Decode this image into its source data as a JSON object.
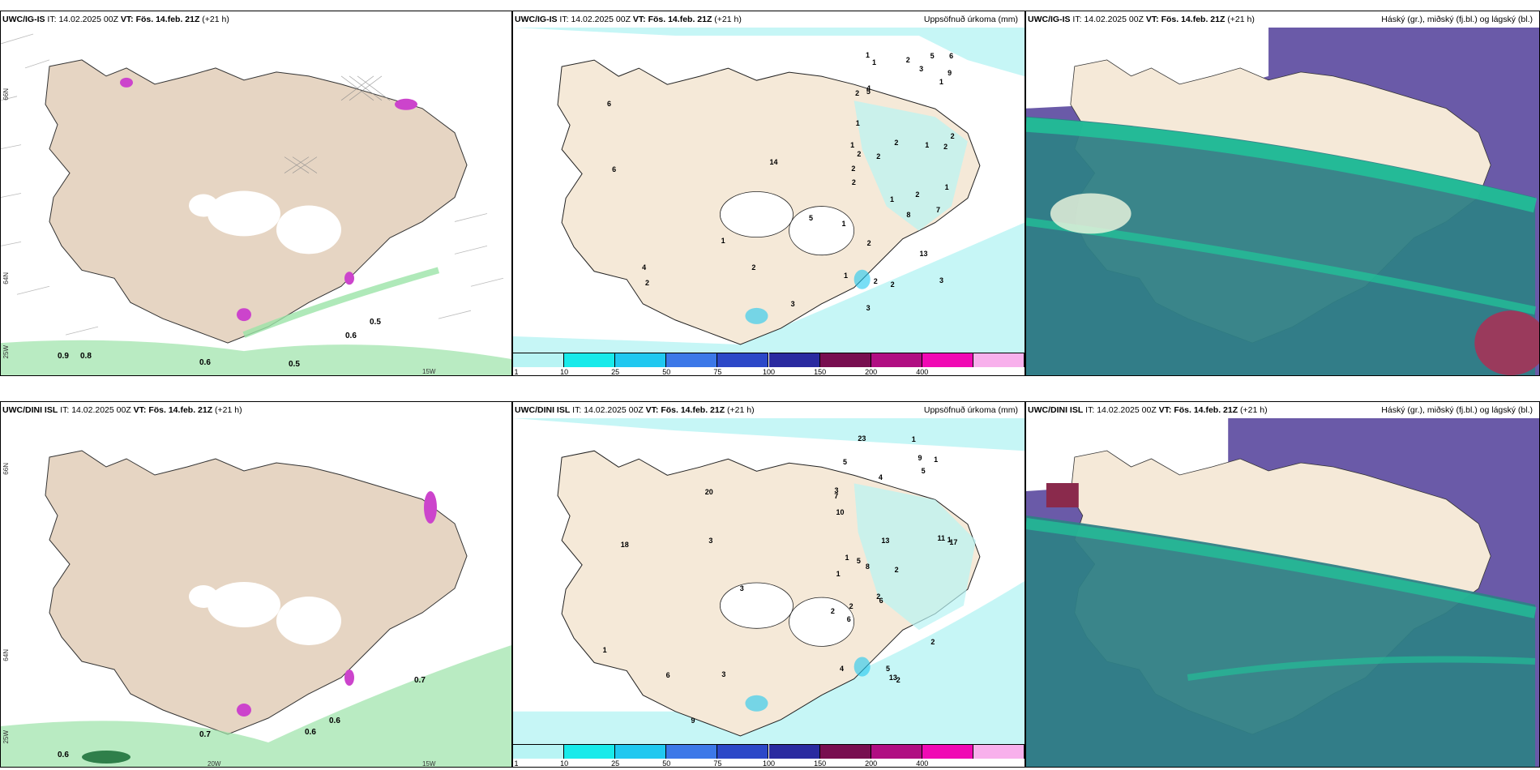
{
  "panels": [
    {
      "model": "UWC/IG-IS",
      "it_label": "IT:",
      "it": "14.02.2025 00Z",
      "vt_label": "VT:",
      "vt": "Fös. 14.feb. 21Z",
      "lead": "(+21 h)",
      "right": ""
    },
    {
      "model": "UWC/IG-IS",
      "it_label": "IT:",
      "it": "14.02.2025 00Z",
      "vt_label": "VT:",
      "vt": "Fös. 14.feb. 21Z",
      "lead": "(+21 h)",
      "right": "Uppsöfnuð úrkoma (mm)"
    },
    {
      "model": "UWC/IG-IS",
      "it_label": "IT:",
      "it": "14.02.2025 00Z",
      "vt_label": "VT:",
      "vt": "Fös. 14.feb. 21Z",
      "lead": "(+21 h)",
      "right": "Háský (gr.), miðský (fj.bl.) og lágský (bl.)"
    },
    {
      "model": "UWC/DINI ISL",
      "it_label": "IT:",
      "it": "14.02.2025 00Z",
      "vt_label": "VT:",
      "vt": "Fös. 14.feb. 21Z",
      "lead": "(+21 h)",
      "right": ""
    },
    {
      "model": "UWC/DINI ISL",
      "it_label": "IT:",
      "it": "14.02.2025 00Z",
      "vt_label": "VT:",
      "vt": "Fös. 14.feb. 21Z",
      "lead": "(+21 h)",
      "right": "Uppsöfnuð úrkoma (mm)"
    },
    {
      "model": "UWC/DINI ISL",
      "it_label": "IT:",
      "it": "14.02.2025 00Z",
      "vt_label": "VT:",
      "vt": "Fös. 14.feb. 21Z",
      "lead": "(+21 h)",
      "right": "Háský (gr.), miðský (fj.bl.) og lágský (bl.)"
    }
  ],
  "axis_labels": {
    "lat66": "66N",
    "lat64": "64N",
    "lon25": "25W",
    "lon20": "20W",
    "lon15": "15W"
  },
  "colorbar": {
    "ticks": [
      "1",
      "10",
      "25",
      "50",
      "75",
      "100",
      "150",
      "200",
      "400"
    ],
    "colors": [
      "#b8f4f4",
      "#18eaea",
      "#20c8f0",
      "#3c78e8",
      "#2c48c8",
      "#2a2aa0",
      "#780e50",
      "#b00e82",
      "#f00ab4",
      "#f8b0ec"
    ]
  },
  "wind_labels_top": [
    "0.9",
    "0.8",
    "0.6",
    "0.5",
    "0.6",
    "0.5"
  ],
  "wind_labels_bottom": [
    "0.6",
    "0.7",
    "0.6",
    "0.6",
    "0.7"
  ],
  "precip_labels_top": [
    "2",
    "1",
    "1",
    "1",
    "2",
    "1",
    "1",
    "2",
    "2",
    "2",
    "1",
    "2",
    "3",
    "2",
    "1",
    "2",
    "6",
    "3",
    "2",
    "2",
    "4",
    "8",
    "3",
    "2",
    "2",
    "14",
    "13",
    "9",
    "5",
    "4",
    "6",
    "2",
    "6",
    "2",
    "5",
    "3",
    "1",
    "1",
    "2",
    "1",
    "7",
    "1",
    "5"
  ],
  "precip_labels_bottom": [
    "2",
    "1",
    "2",
    "1",
    "2",
    "1",
    "5",
    "4",
    "10",
    "2",
    "17",
    "23",
    "20",
    "18",
    "13",
    "11",
    "9",
    "13",
    "3",
    "1",
    "6",
    "6",
    "2",
    "2",
    "3",
    "1",
    "5",
    "9",
    "5",
    "5",
    "6",
    "7",
    "8",
    "4",
    "3",
    "1",
    "3"
  ],
  "colors": {
    "land": "#f5e9d8",
    "land_wind": "#e6d5c3",
    "precip_light": "#b8f4f4",
    "cloud_high": "#6a5aa8",
    "cloud_mid": "#2f7f86",
    "cloud_low": "#1fc79a",
    "wind_green": "#9be3a8"
  }
}
